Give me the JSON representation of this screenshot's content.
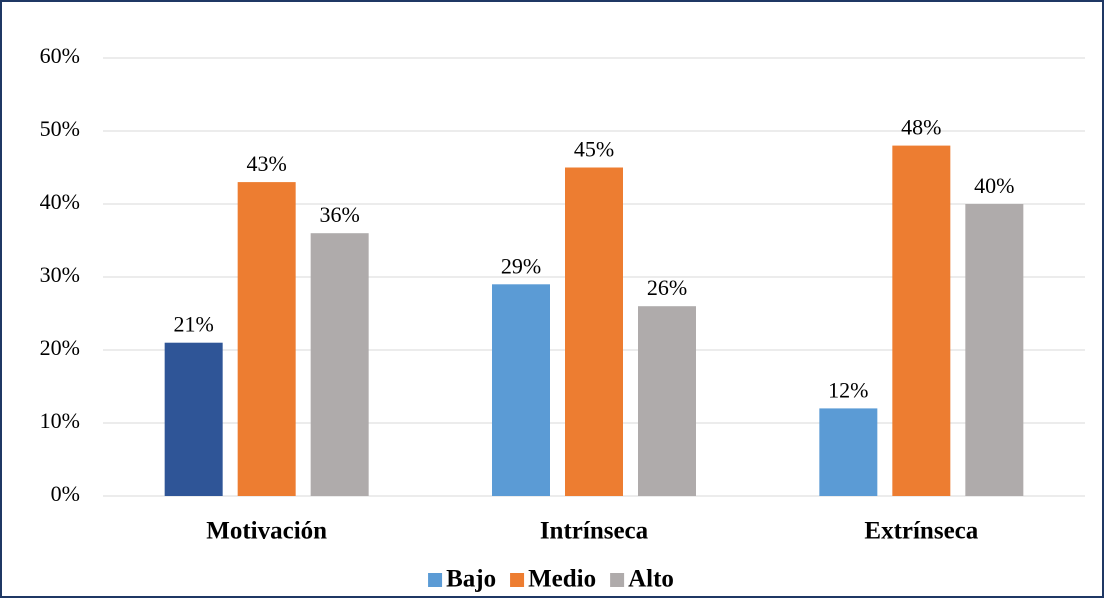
{
  "chart_data": {
    "type": "bar",
    "categories": [
      "Motivación",
      "Intrínseca",
      "Extrínseca"
    ],
    "series": [
      {
        "name": "Bajo",
        "color": "#5b9bd5",
        "colors": [
          "#2f5597",
          "#5b9bd5",
          "#5b9bd5"
        ],
        "values": [
          21,
          29,
          12
        ],
        "value_labels": [
          "21%",
          "29%",
          "12%"
        ]
      },
      {
        "name": "Medio",
        "color": "#ed7d31",
        "values": [
          43,
          45,
          48
        ],
        "value_labels": [
          "43%",
          "45%",
          "48%"
        ]
      },
      {
        "name": "Alto",
        "color": "#afabab",
        "values": [
          36,
          26,
          40
        ],
        "value_labels": [
          "36%",
          "26%",
          "40%"
        ]
      }
    ],
    "ylim": [
      0,
      60
    ],
    "yticks": [
      {
        "value": 0,
        "label": "0%"
      },
      {
        "value": 10,
        "label": "10%"
      },
      {
        "value": 20,
        "label": "20%"
      },
      {
        "value": 30,
        "label": "30%"
      },
      {
        "value": 40,
        "label": "40%"
      },
      {
        "value": 50,
        "label": "50%"
      },
      {
        "value": 60,
        "label": "60%"
      }
    ],
    "grid": true,
    "legend": "bottom"
  }
}
